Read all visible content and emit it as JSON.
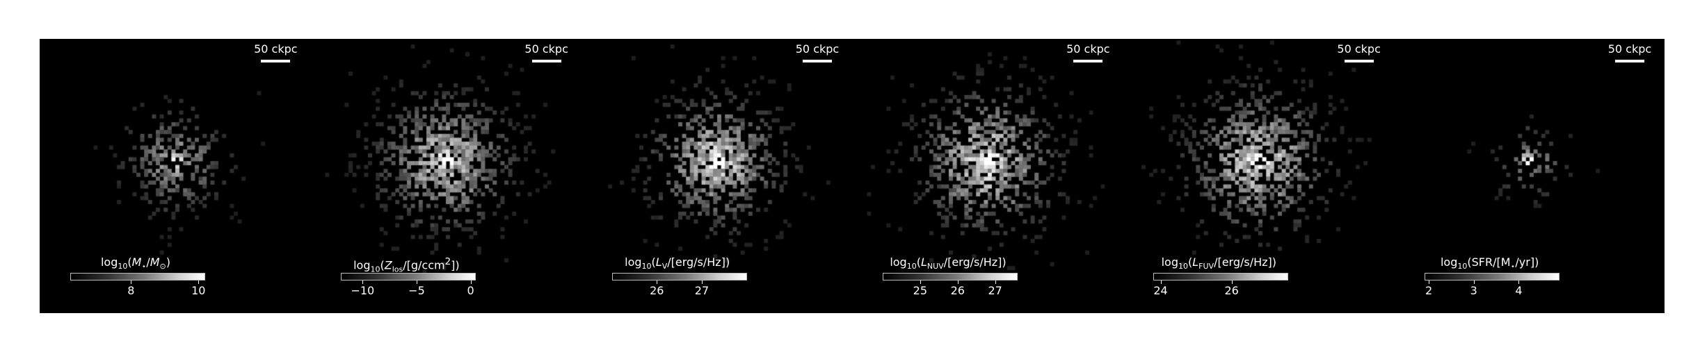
{
  "scale_bar_text": "50 ckpc",
  "panels": [
    {
      "id": "stellar-mass",
      "label_html": "log<sub>10</sub>(<i>M</i><sub>⋆</sub>/<i>M</i><sub>⊙</sub>)",
      "cbar_range": [
        6.2,
        10.2
      ],
      "ticks": [
        {
          "value": 8,
          "text": "8"
        },
        {
          "value": 10,
          "text": "10"
        }
      ],
      "map": {
        "spread": 0.26,
        "density": 0.55,
        "core": 1.0,
        "brightness": 0.55,
        "seed": 11
      }
    },
    {
      "id": "metallicity",
      "label_html": "log<sub>10</sub>(<i>Z</i><sub>los</sub>/[g/ccm<sup>2</sup>])",
      "cbar_range": [
        -12,
        0.5
      ],
      "ticks": [
        {
          "value": -10,
          "text": "−10"
        },
        {
          "value": -5,
          "text": "−5"
        },
        {
          "value": 0,
          "text": "0"
        }
      ],
      "map": {
        "spread": 0.34,
        "density": 0.85,
        "core": 1.0,
        "brightness": 0.75,
        "seed": 23
      }
    },
    {
      "id": "v-band",
      "label_html": "log<sub>10</sub>(<i>L</i><sub>V</sub>/[erg/s/Hz])",
      "cbar_range": [
        25.0,
        28.0
      ],
      "ticks": [
        {
          "value": 26,
          "text": "26"
        },
        {
          "value": 27,
          "text": "27"
        }
      ],
      "map": {
        "spread": 0.33,
        "density": 0.72,
        "core": 0.95,
        "brightness": 0.78,
        "seed": 37
      }
    },
    {
      "id": "nuv",
      "label_html": "log<sub>10</sub>(<i>L</i><sub>NUV</sub>/[erg/s/Hz])",
      "cbar_range": [
        24.0,
        27.6
      ],
      "ticks": [
        {
          "value": 25,
          "text": "25"
        },
        {
          "value": 26,
          "text": "26"
        },
        {
          "value": 27,
          "text": "27"
        }
      ],
      "map": {
        "spread": 0.35,
        "density": 0.75,
        "core": 0.9,
        "brightness": 0.82,
        "seed": 41
      }
    },
    {
      "id": "fuv",
      "label_html": "log<sub>10</sub>(<i>L</i><sub>FUV</sub>/[erg/s/Hz])",
      "cbar_range": [
        23.8,
        27.6
      ],
      "ticks": [
        {
          "value": 24,
          "text": "24"
        },
        {
          "value": 26,
          "text": "26"
        }
      ],
      "map": {
        "spread": 0.35,
        "density": 0.72,
        "core": 0.9,
        "brightness": 0.82,
        "seed": 53
      }
    },
    {
      "id": "sfr",
      "label_html": "log<sub>10</sub>(SFR/[M<sub>⋆</sub>/yr])",
      "cbar_range": [
        1.9,
        4.9
      ],
      "ticks": [
        {
          "value": 2,
          "text": "2"
        },
        {
          "value": 3,
          "text": "3"
        },
        {
          "value": 4,
          "text": "4"
        }
      ],
      "map": {
        "spread": 0.18,
        "density": 0.35,
        "core": 1.0,
        "brightness": 0.5,
        "seed": 67
      }
    }
  ]
}
